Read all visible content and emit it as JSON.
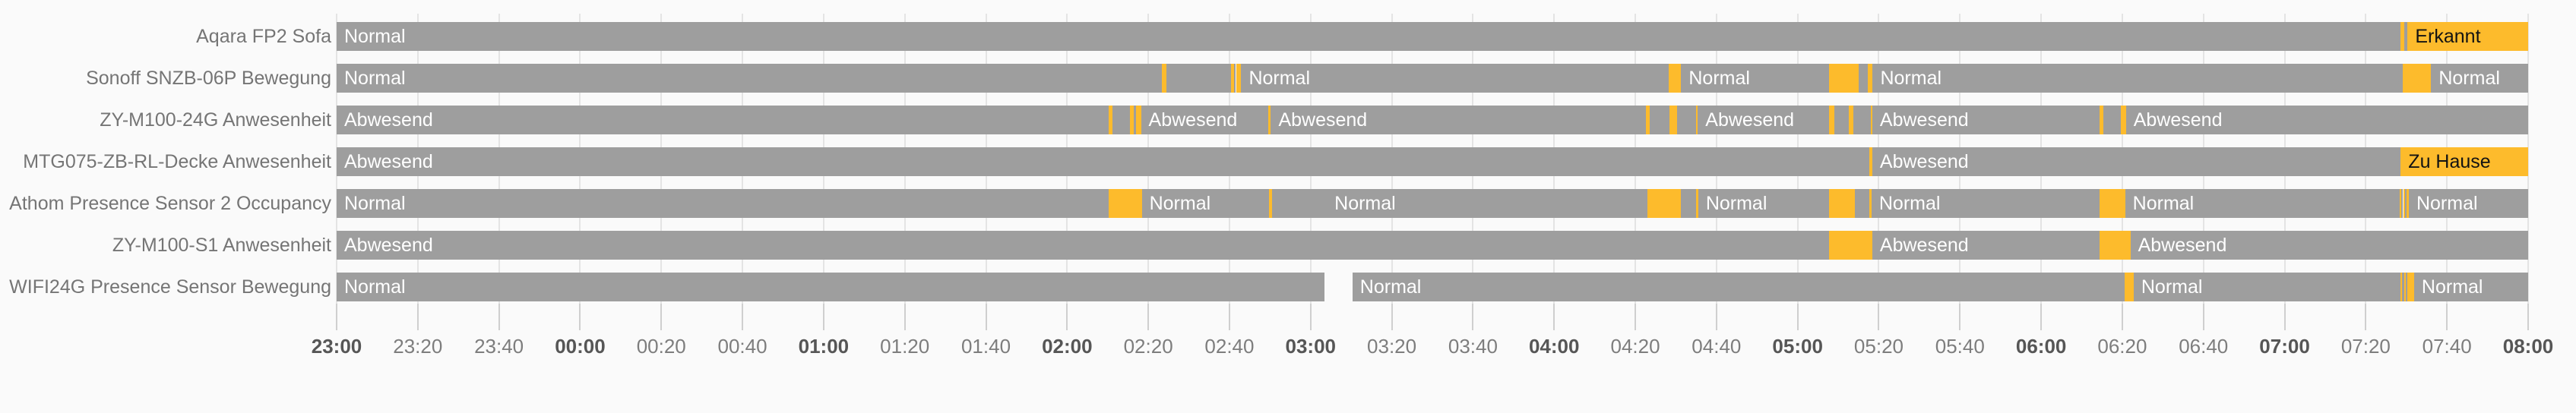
{
  "chart_data": {
    "type": "timeline",
    "time_unit": "minutes_after_23:00",
    "axis_range_minutes": [
      0,
      540
    ],
    "grid": true,
    "x_axis": {
      "interval_minutes": 20,
      "ticks": [
        {
          "label": "23:00",
          "bold": true
        },
        {
          "label": "23:20",
          "bold": false
        },
        {
          "label": "23:40",
          "bold": false
        },
        {
          "label": "00:00",
          "bold": true
        },
        {
          "label": "00:20",
          "bold": false
        },
        {
          "label": "00:40",
          "bold": false
        },
        {
          "label": "01:00",
          "bold": true
        },
        {
          "label": "01:20",
          "bold": false
        },
        {
          "label": "01:40",
          "bold": false
        },
        {
          "label": "02:00",
          "bold": true
        },
        {
          "label": "02:20",
          "bold": false
        },
        {
          "label": "02:40",
          "bold": false
        },
        {
          "label": "03:00",
          "bold": true
        },
        {
          "label": "03:20",
          "bold": false
        },
        {
          "label": "03:40",
          "bold": false
        },
        {
          "label": "04:00",
          "bold": true
        },
        {
          "label": "04:20",
          "bold": false
        },
        {
          "label": "04:40",
          "bold": false
        },
        {
          "label": "05:00",
          "bold": true
        },
        {
          "label": "05:20",
          "bold": false
        },
        {
          "label": "05:40",
          "bold": false
        },
        {
          "label": "06:00",
          "bold": true
        },
        {
          "label": "06:20",
          "bold": false
        },
        {
          "label": "06:40",
          "bold": false
        },
        {
          "label": "07:00",
          "bold": true
        },
        {
          "label": "07:20",
          "bold": false
        },
        {
          "label": "07:40",
          "bold": false
        },
        {
          "label": "08:00",
          "bold": true
        }
      ]
    },
    "colors": {
      "segment_inactive": "#9e9e9e",
      "segment_active": "#fdbb2c",
      "background": "#fafafa",
      "gridline": "#e4e4e4",
      "tick_mark": "#cfcfcf",
      "text_on_inactive": "#ffffff",
      "text_on_active": "#131313",
      "row_label_text": "#757575",
      "tick_text": "#7d7d7d",
      "tick_text_bold": "#565656"
    },
    "rows": [
      {
        "sensor": "Aqara FP2 Sofa",
        "segments": [
          {
            "from": 0,
            "to": 508.6,
            "color": "gray",
            "label": "Normal"
          },
          {
            "from": 508.6,
            "to": 509.4,
            "color": "yellow"
          },
          {
            "from": 509.4,
            "to": 510.3,
            "color": "gray"
          },
          {
            "from": 510.3,
            "to": 540,
            "color": "yellow",
            "label": "Erkannt"
          }
        ]
      },
      {
        "sensor": "Sonoff SNZB-06P Bewegung",
        "segments": [
          {
            "from": 0,
            "to": 203.4,
            "color": "gray",
            "label": "Normal"
          },
          {
            "from": 203.4,
            "to": 204.5,
            "color": "yellow"
          },
          {
            "from": 204.5,
            "to": 220.4,
            "color": "gray"
          },
          {
            "from": 220.4,
            "to": 221.2,
            "color": "yellow"
          },
          {
            "from": 221.2,
            "to": 221.6,
            "color": "gray"
          },
          {
            "from": 221.6,
            "to": 222.9,
            "color": "yellow"
          },
          {
            "from": 222.9,
            "to": 328.3,
            "color": "gray",
            "label": "Normal"
          },
          {
            "from": 328.3,
            "to": 331.3,
            "color": "yellow"
          },
          {
            "from": 331.3,
            "to": 367.8,
            "color": "gray",
            "label": "Normal"
          },
          {
            "from": 367.8,
            "to": 375.0,
            "color": "yellow"
          },
          {
            "from": 375.0,
            "to": 377.2,
            "color": "gray"
          },
          {
            "from": 377.2,
            "to": 378.5,
            "color": "yellow"
          },
          {
            "from": 378.5,
            "to": 509.1,
            "color": "gray",
            "label": "Normal"
          },
          {
            "from": 509.1,
            "to": 516.1,
            "color": "yellow"
          },
          {
            "from": 516.1,
            "to": 540,
            "color": "gray",
            "label": "Normal"
          }
        ]
      },
      {
        "sensor": "ZY-M100-24G Anwesenheit",
        "segments": [
          {
            "from": 0,
            "to": 190.3,
            "color": "gray",
            "label": "Abwesend"
          },
          {
            "from": 190.3,
            "to": 191.1,
            "color": "yellow"
          },
          {
            "from": 191.1,
            "to": 195.4,
            "color": "gray"
          },
          {
            "from": 195.4,
            "to": 196.5,
            "color": "yellow"
          },
          {
            "from": 196.5,
            "to": 196.9,
            "color": "gray"
          },
          {
            "from": 196.9,
            "to": 198.2,
            "color": "yellow"
          },
          {
            "from": 198.2,
            "to": 229.6,
            "color": "gray",
            "label": "Abwesend"
          },
          {
            "from": 229.6,
            "to": 230.2,
            "color": "yellow"
          },
          {
            "from": 230.2,
            "to": 322.7,
            "color": "gray",
            "label": "Abwesend"
          },
          {
            "from": 322.7,
            "to": 323.6,
            "color": "yellow"
          },
          {
            "from": 323.6,
            "to": 328.5,
            "color": "gray"
          },
          {
            "from": 328.5,
            "to": 330.2,
            "color": "yellow"
          },
          {
            "from": 330.2,
            "to": 334.9,
            "color": "gray"
          },
          {
            "from": 334.9,
            "to": 335.4,
            "color": "yellow"
          },
          {
            "from": 335.4,
            "to": 367.7,
            "color": "gray",
            "label": "Abwesend"
          },
          {
            "from": 367.7,
            "to": 369.0,
            "color": "yellow"
          },
          {
            "from": 369.0,
            "to": 372.6,
            "color": "gray"
          },
          {
            "from": 372.6,
            "to": 373.7,
            "color": "yellow"
          },
          {
            "from": 373.7,
            "to": 378.0,
            "color": "gray"
          },
          {
            "from": 378.0,
            "to": 378.4,
            "color": "yellow"
          },
          {
            "from": 378.4,
            "to": 434.4,
            "color": "gray",
            "label": "Abwesend"
          },
          {
            "from": 434.4,
            "to": 435.3,
            "color": "yellow"
          },
          {
            "from": 435.3,
            "to": 439.6,
            "color": "gray"
          },
          {
            "from": 439.6,
            "to": 440.9,
            "color": "yellow"
          },
          {
            "from": 440.9,
            "to": 540,
            "color": "gray",
            "label": "Abwesend"
          }
        ]
      },
      {
        "sensor": "MTG075-ZB-RL-Decke Anwesenheit",
        "segments": [
          {
            "from": 0,
            "to": 377.6,
            "color": "gray",
            "label": "Abwesend"
          },
          {
            "from": 377.6,
            "to": 378.4,
            "color": "yellow"
          },
          {
            "from": 378.4,
            "to": 508.6,
            "color": "gray",
            "label": "Abwesend"
          },
          {
            "from": 508.6,
            "to": 540,
            "color": "yellow",
            "label": "Zu Hause"
          }
        ]
      },
      {
        "sensor": "Athom Presence Sensor 2 Occupancy",
        "segments": [
          {
            "from": 0,
            "to": 190.3,
            "color": "gray",
            "label": "Normal"
          },
          {
            "from": 190.3,
            "to": 198.4,
            "color": "yellow"
          },
          {
            "from": 198.4,
            "to": 229.8,
            "color": "gray",
            "label": "Normal"
          },
          {
            "from": 229.8,
            "to": 230.4,
            "color": "yellow"
          },
          {
            "from": 230.4,
            "to": 244.0,
            "color": "gray"
          },
          {
            "from": 244.0,
            "to": 322.9,
            "color": "gray",
            "label": "Normal"
          },
          {
            "from": 322.9,
            "to": 331.3,
            "color": "yellow"
          },
          {
            "from": 331.3,
            "to": 334.9,
            "color": "gray"
          },
          {
            "from": 334.9,
            "to": 335.5,
            "color": "yellow"
          },
          {
            "from": 335.5,
            "to": 367.7,
            "color": "gray",
            "label": "Normal"
          },
          {
            "from": 367.7,
            "to": 374.1,
            "color": "yellow"
          },
          {
            "from": 374.1,
            "to": 377.6,
            "color": "gray"
          },
          {
            "from": 377.6,
            "to": 378.2,
            "color": "yellow"
          },
          {
            "from": 378.2,
            "to": 434.4,
            "color": "gray",
            "label": "Normal"
          },
          {
            "from": 434.4,
            "to": 440.7,
            "color": "yellow"
          },
          {
            "from": 440.7,
            "to": 508.4,
            "color": "gray",
            "label": "Normal"
          },
          {
            "from": 508.4,
            "to": 508.8,
            "color": "yellow"
          },
          {
            "from": 508.8,
            "to": 509.2,
            "color": "gray"
          },
          {
            "from": 509.2,
            "to": 509.6,
            "color": "yellow"
          },
          {
            "from": 509.6,
            "to": 510.0,
            "color": "gray"
          },
          {
            "from": 510.0,
            "to": 510.6,
            "color": "yellow"
          },
          {
            "from": 510.6,
            "to": 540,
            "color": "gray",
            "label": "Normal"
          }
        ]
      },
      {
        "sensor": "ZY-M100-S1 Anwesenheit",
        "segments": [
          {
            "from": 0,
            "to": 367.7,
            "color": "gray",
            "label": "Abwesend"
          },
          {
            "from": 367.7,
            "to": 378.4,
            "color": "yellow"
          },
          {
            "from": 378.4,
            "to": 434.4,
            "color": "gray",
            "label": "Abwesend"
          },
          {
            "from": 434.4,
            "to": 442.0,
            "color": "yellow"
          },
          {
            "from": 442.0,
            "to": 540,
            "color": "gray",
            "label": "Abwesend"
          }
        ]
      },
      {
        "sensor": "WIFI24G Presence Sensor Bewegung",
        "segments": [
          {
            "from": 0,
            "to": 243.4,
            "color": "gray",
            "label": "Normal"
          },
          {
            "from": 250.3,
            "to": 440.6,
            "color": "gray",
            "label": "Normal"
          },
          {
            "from": 440.6,
            "to": 442.8,
            "color": "yellow"
          },
          {
            "from": 442.8,
            "to": 508.6,
            "color": "gray",
            "label": "Normal"
          },
          {
            "from": 508.6,
            "to": 509.0,
            "color": "yellow"
          },
          {
            "from": 509.0,
            "to": 509.4,
            "color": "gray"
          },
          {
            "from": 509.4,
            "to": 509.8,
            "color": "yellow"
          },
          {
            "from": 509.8,
            "to": 510.2,
            "color": "gray"
          },
          {
            "from": 510.2,
            "to": 511.9,
            "color": "yellow"
          },
          {
            "from": 511.9,
            "to": 540,
            "color": "gray",
            "label": "Normal"
          }
        ]
      }
    ]
  }
}
